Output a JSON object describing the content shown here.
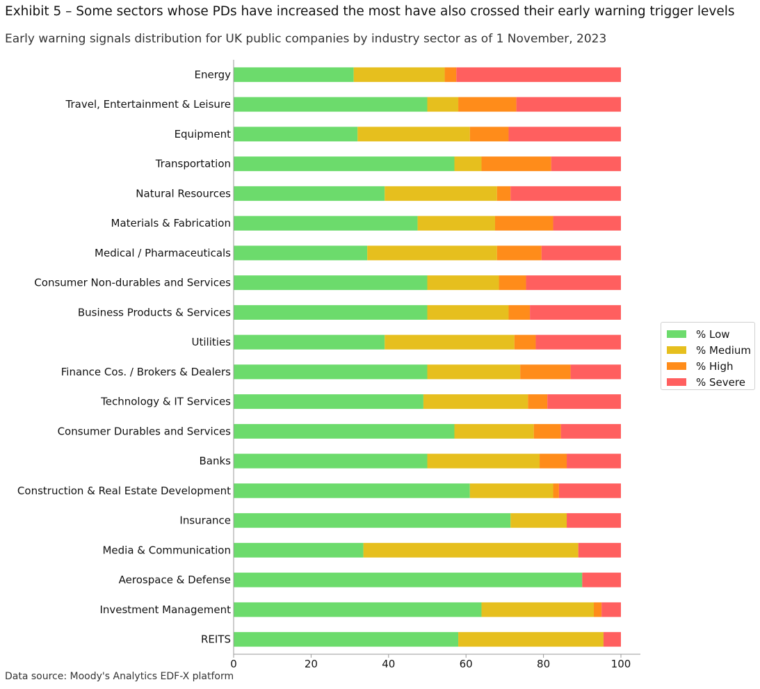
{
  "header": {
    "title": "Exhibit 5 – Some sectors whose PDs have increased the most have also crossed their early warning trigger levels",
    "subtitle": "Early warning signals distribution for UK public companies by industry sector as of 1 November, 2023"
  },
  "footer": {
    "source": "Data source: Moody's Analytics EDF-X platform"
  },
  "chart_data": {
    "type": "bar",
    "orientation": "horizontal",
    "stacked": true,
    "xlim": [
      0,
      100
    ],
    "xticks": [
      0,
      20,
      40,
      60,
      80,
      100
    ],
    "grid": false,
    "legend_position": "right",
    "categories": [
      "Energy",
      "Travel, Entertainment & Leisure",
      "Equipment",
      "Transportation",
      "Natural Resources",
      "Materials & Fabrication",
      "Medical / Pharmaceuticals",
      "Consumer Non-durables and Services",
      "Business Products & Services",
      "Utilities",
      "Finance Cos. / Brokers & Dealers",
      "Technology & IT Services",
      "Consumer Durables and Services",
      "Banks",
      "Construction & Real Estate Development",
      "Insurance",
      "Media & Communication",
      "Aerospace & Defense",
      "Investment Management",
      "REITS"
    ],
    "series": [
      {
        "name": "% Low",
        "color": "#6cdb6c",
        "values": [
          31,
          50,
          32,
          57,
          39,
          47.5,
          34.5,
          50,
          50,
          39,
          50,
          49,
          57,
          50,
          61,
          71.5,
          33.5,
          90,
          64,
          58
        ]
      },
      {
        "name": "% Medium",
        "color": "#e6bf1e",
        "values": [
          23.5,
          8,
          29,
          7,
          29,
          20,
          33.5,
          18.5,
          21,
          33.5,
          24,
          27,
          20.5,
          29,
          21.5,
          14.5,
          55.5,
          0,
          29,
          37.5
        ]
      },
      {
        "name": "% High",
        "color": "#ff8c1a",
        "values": [
          3,
          15,
          10,
          18,
          3.5,
          15,
          11.5,
          7,
          5.5,
          5.5,
          13,
          5,
          7,
          7,
          1.5,
          0,
          0,
          0,
          2,
          0
        ]
      },
      {
        "name": "% Severe",
        "color": "#ff5f5f",
        "values": [
          42.5,
          27,
          29,
          18,
          28.5,
          17.5,
          20.5,
          24.5,
          23.5,
          22,
          13,
          19,
          15.5,
          14,
          16,
          14,
          11,
          10,
          5,
          4.5
        ]
      }
    ]
  }
}
